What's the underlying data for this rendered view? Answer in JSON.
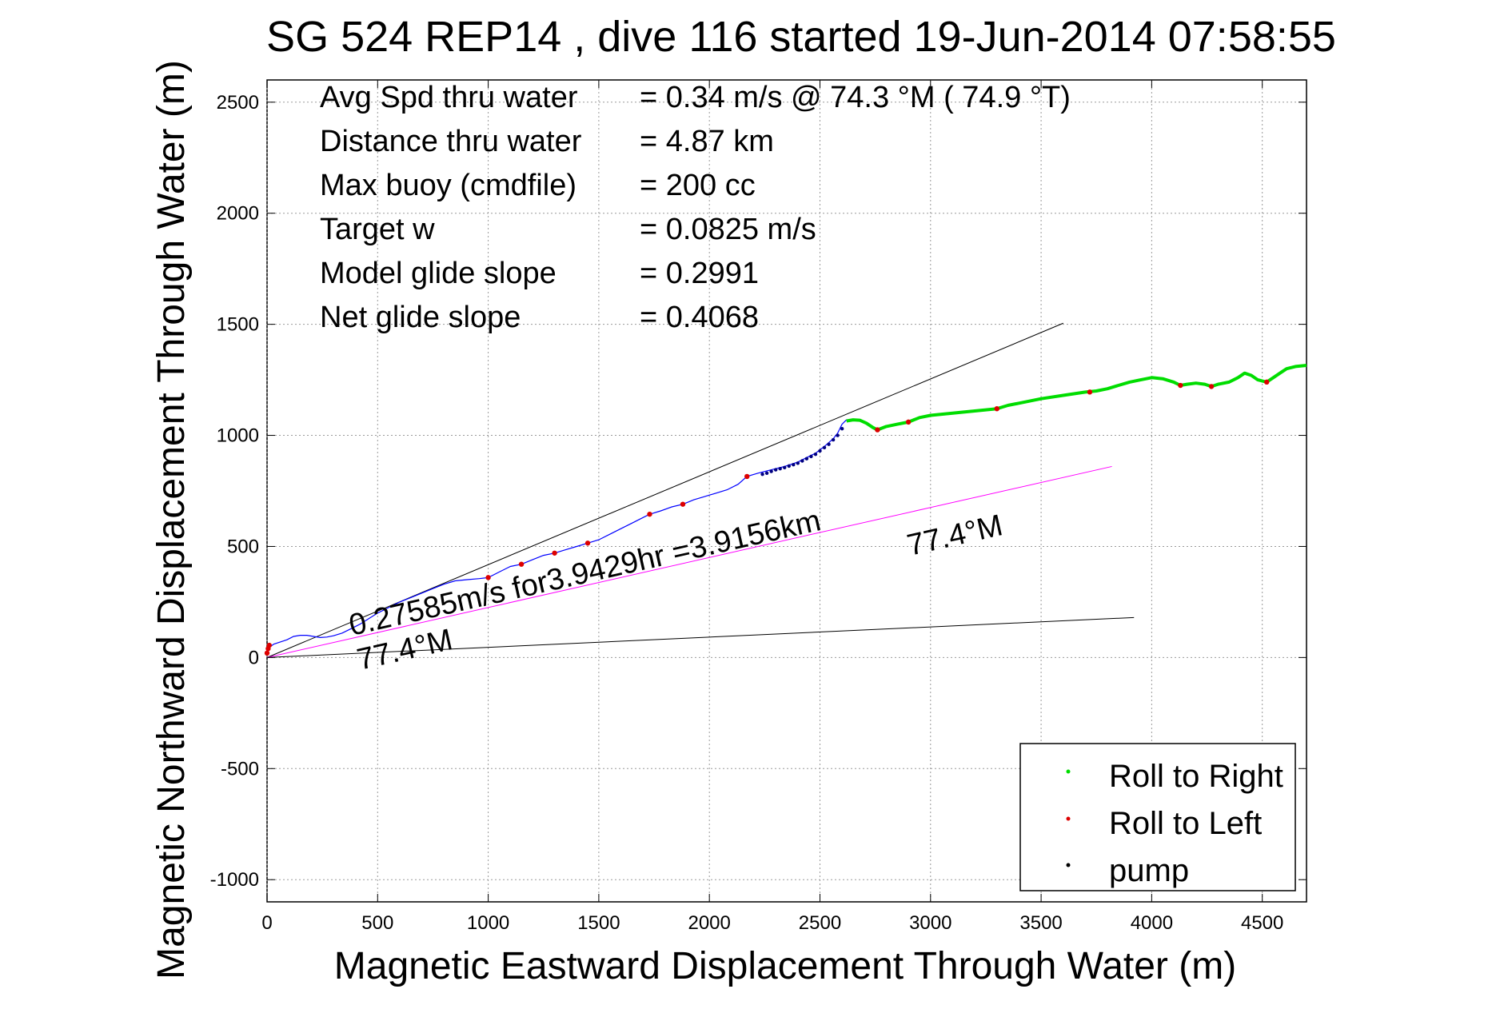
{
  "chart_data": {
    "type": "line",
    "title": "SG 524   REP14  , dive 116 started 19-Jun-2014 07:58:55",
    "xlabel": "Magnetic Eastward Displacement Through Water (m)",
    "ylabel": "Magnetic Northward Displacement Through Water (m)",
    "xlim": [
      0,
      4700
    ],
    "ylim": [
      -1100,
      2600
    ],
    "xticks": [
      0,
      500,
      1000,
      1500,
      2000,
      2500,
      3000,
      3500,
      4000,
      4500
    ],
    "yticks": [
      -1000,
      -500,
      0,
      500,
      1000,
      1500,
      2000,
      2500
    ],
    "grid": true,
    "legend_position": "bottom-right",
    "stats": [
      {
        "label": "Avg Spd thru water",
        "value": "=  0.34 m/s @  74.3 °M ( 74.9 °T)"
      },
      {
        "label": "Distance thru water",
        "value": "=  4.87 km"
      },
      {
        "label": "Max buoy (cmdfile)",
        "value": "= 200 cc"
      },
      {
        "label": "Target w",
        "value": "= 0.0825 m/s"
      },
      {
        "label": "Model glide slope",
        "value": "= 0.2991"
      },
      {
        "label": "Net glide slope",
        "value": "= 0.4068"
      }
    ],
    "annotations": {
      "speed": "0.27585m/s for3.9429hr =3.9156km",
      "heading_mid": "77.4°M",
      "heading_low": "77.4°M"
    },
    "reference_lines": [
      {
        "from": [
          0,
          0
        ],
        "to": [
          3600,
          1505
        ],
        "color": "#000000"
      },
      {
        "from": [
          0,
          0
        ],
        "to": [
          3820,
          860
        ],
        "color": "#ff00ff"
      },
      {
        "from": [
          0,
          0
        ],
        "to": [
          3920,
          180
        ],
        "color": "#000000"
      }
    ],
    "track": {
      "color": "#0000ff",
      "points": [
        [
          0,
          20
        ],
        [
          10,
          45
        ],
        [
          30,
          60
        ],
        [
          60,
          70
        ],
        [
          90,
          80
        ],
        [
          120,
          95
        ],
        [
          150,
          100
        ],
        [
          180,
          100
        ],
        [
          210,
          95
        ],
        [
          240,
          90
        ],
        [
          270,
          92
        ],
        [
          300,
          98
        ],
        [
          340,
          110
        ],
        [
          380,
          130
        ],
        [
          420,
          150
        ],
        [
          460,
          175
        ],
        [
          500,
          200
        ],
        [
          550,
          225
        ],
        [
          600,
          250
        ],
        [
          650,
          270
        ],
        [
          700,
          290
        ],
        [
          750,
          310
        ],
        [
          800,
          330
        ],
        [
          850,
          345
        ],
        [
          900,
          350
        ],
        [
          960,
          355
        ],
        [
          1000,
          360
        ],
        [
          1050,
          385
        ],
        [
          1100,
          410
        ],
        [
          1150,
          420
        ],
        [
          1200,
          440
        ],
        [
          1250,
          460
        ],
        [
          1300,
          470
        ],
        [
          1350,
          485
        ],
        [
          1400,
          500
        ],
        [
          1450,
          515
        ],
        [
          1500,
          530
        ],
        [
          1550,
          555
        ],
        [
          1600,
          580
        ],
        [
          1650,
          605
        ],
        [
          1700,
          630
        ],
        [
          1730,
          645
        ],
        [
          1780,
          660
        ],
        [
          1830,
          678
        ],
        [
          1880,
          690
        ],
        [
          1930,
          710
        ],
        [
          1980,
          725
        ],
        [
          2030,
          740
        ],
        [
          2080,
          755
        ],
        [
          2130,
          780
        ],
        [
          2170,
          815
        ],
        [
          2220,
          830
        ],
        [
          2280,
          845
        ],
        [
          2340,
          860
        ],
        [
          2400,
          880
        ],
        [
          2440,
          900
        ],
        [
          2480,
          920
        ],
        [
          2520,
          950
        ],
        [
          2560,
          985
        ],
        [
          2580,
          1010
        ],
        [
          2600,
          1050
        ],
        [
          2620,
          1070
        ]
      ]
    },
    "pump": {
      "color": "#000080",
      "points": [
        [
          2240,
          825
        ],
        [
          2260,
          830
        ],
        [
          2280,
          838
        ],
        [
          2300,
          845
        ],
        [
          2320,
          850
        ],
        [
          2340,
          855
        ],
        [
          2360,
          862
        ],
        [
          2380,
          868
        ],
        [
          2400,
          875
        ],
        [
          2420,
          885
        ],
        [
          2440,
          895
        ],
        [
          2460,
          905
        ],
        [
          2480,
          915
        ],
        [
          2500,
          930
        ],
        [
          2520,
          945
        ],
        [
          2540,
          960
        ],
        [
          2560,
          980
        ],
        [
          2580,
          1000
        ],
        [
          2600,
          1030
        ]
      ]
    },
    "roll_right": {
      "name": "Roll to Right",
      "color": "#00dd00",
      "points": [
        [
          2620,
          1065
        ],
        [
          2650,
          1070
        ],
        [
          2680,
          1068
        ],
        [
          2710,
          1055
        ],
        [
          2740,
          1035
        ],
        [
          2760,
          1025
        ],
        [
          2800,
          1040
        ],
        [
          2850,
          1050
        ],
        [
          2900,
          1060
        ],
        [
          2950,
          1080
        ],
        [
          3000,
          1090
        ],
        [
          3100,
          1100
        ],
        [
          3200,
          1110
        ],
        [
          3300,
          1120
        ],
        [
          3350,
          1135
        ],
        [
          3400,
          1145
        ],
        [
          3500,
          1165
        ],
        [
          3600,
          1180
        ],
        [
          3700,
          1195
        ],
        [
          3750,
          1200
        ],
        [
          3800,
          1210
        ],
        [
          3850,
          1225
        ],
        [
          3900,
          1240
        ],
        [
          3950,
          1250
        ],
        [
          4000,
          1260
        ],
        [
          4050,
          1255
        ],
        [
          4100,
          1240
        ],
        [
          4130,
          1225
        ],
        [
          4160,
          1230
        ],
        [
          4200,
          1235
        ],
        [
          4240,
          1230
        ],
        [
          4270,
          1220
        ],
        [
          4300,
          1230
        ],
        [
          4350,
          1240
        ],
        [
          4390,
          1260
        ],
        [
          4420,
          1280
        ],
        [
          4450,
          1270
        ],
        [
          4480,
          1250
        ],
        [
          4520,
          1240
        ],
        [
          4550,
          1260
        ],
        [
          4580,
          1280
        ],
        [
          4610,
          1300
        ],
        [
          4650,
          1310
        ],
        [
          4700,
          1315
        ]
      ]
    },
    "roll_left": {
      "name": "Roll to Left",
      "color": "#dd0000",
      "points": [
        [
          0,
          20
        ],
        [
          5,
          40
        ],
        [
          10,
          55
        ],
        [
          1000,
          360
        ],
        [
          1150,
          420
        ],
        [
          1300,
          470
        ],
        [
          1450,
          515
        ],
        [
          1730,
          645
        ],
        [
          1880,
          690
        ],
        [
          2170,
          815
        ],
        [
          2760,
          1025
        ],
        [
          2900,
          1060
        ],
        [
          3300,
          1120
        ],
        [
          3720,
          1195
        ],
        [
          4130,
          1225
        ],
        [
          4270,
          1220
        ],
        [
          4520,
          1240
        ]
      ]
    },
    "legend_pump": {
      "name": "pump",
      "color": "#000000"
    }
  }
}
